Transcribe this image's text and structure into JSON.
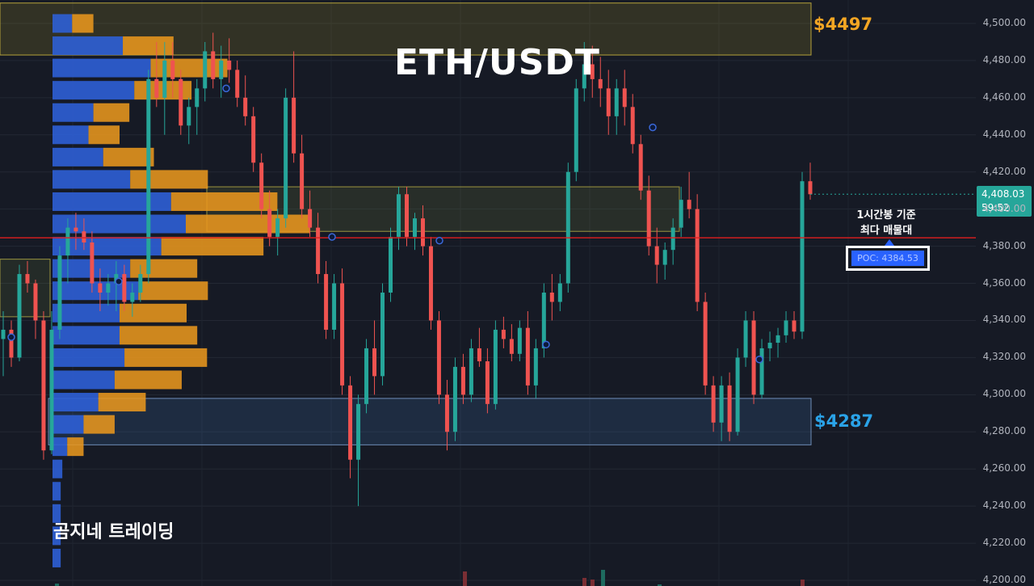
{
  "title": "ETH/USDT",
  "brand": "곰지네 트레이딩",
  "zones": {
    "resistance_label": "$4497",
    "support_label": "$4287"
  },
  "annotation": {
    "line1": "1시간봉 기준",
    "line2": "최다 매물대",
    "poc_label": "POC: 4384.53"
  },
  "price_tag": {
    "price": "4,408.03",
    "countdown": "59:52"
  },
  "colors": {
    "up": "#26a69a",
    "down": "#ef5350",
    "poc_line": "#e01e1e",
    "vp_buy": "#2962ff",
    "vp_sell": "#f5a623",
    "background": "#161a25"
  },
  "chart_data": {
    "type": "candlestick",
    "symbol": "ETH/USDT",
    "timeframe": "1h",
    "ylim": [
      4200,
      4510
    ],
    "y_ticks": [
      "4,500.00",
      "4,480.00",
      "4,460.00",
      "4,440.00",
      "4,420.00",
      "4,400.00",
      "4,380.00",
      "4,360.00",
      "4,340.00",
      "4,320.00",
      "4,300.00",
      "4,280.00",
      "4,260.00",
      "4,240.00",
      "4,220.00",
      "4,200.00"
    ],
    "y_tick_values": [
      4500,
      4480,
      4460,
      4440,
      4420,
      4400,
      4380,
      4360,
      4340,
      4320,
      4300,
      4280,
      4260,
      4240,
      4220,
      4200
    ],
    "poc": 4384.53,
    "current_price": 4408.03,
    "resistance_zone": [
      4483,
      4511
    ],
    "support_zone": [
      4273,
      4298
    ],
    "candles": [
      [
        4330,
        4345,
        4310,
        4335
      ],
      [
        4335,
        4340,
        4315,
        4320
      ],
      [
        4320,
        4370,
        4318,
        4365
      ],
      [
        4365,
        4372,
        4355,
        4360
      ],
      [
        4360,
        4362,
        4330,
        4340
      ],
      [
        4340,
        4345,
        4265,
        4270
      ],
      [
        4270,
        4345,
        4268,
        4335
      ],
      [
        4335,
        4380,
        4330,
        4375
      ],
      [
        4375,
        4395,
        4360,
        4390
      ],
      [
        4390,
        4398,
        4378,
        4388
      ],
      [
        4388,
        4395,
        4378,
        4382
      ],
      [
        4382,
        4388,
        4355,
        4360
      ],
      [
        4360,
        4368,
        4345,
        4355
      ],
      [
        4355,
        4365,
        4348,
        4360
      ],
      [
        4360,
        4372,
        4345,
        4365
      ],
      [
        4365,
        4370,
        4345,
        4350
      ],
      [
        4350,
        4360,
        4342,
        4355
      ],
      [
        4355,
        4370,
        4350,
        4365
      ],
      [
        4365,
        4475,
        4360,
        4470
      ],
      [
        4470,
        4490,
        4455,
        4460
      ],
      [
        4460,
        4490,
        4440,
        4480
      ],
      [
        4480,
        4490,
        4460,
        4470
      ],
      [
        4470,
        4475,
        4440,
        4445
      ],
      [
        4445,
        4460,
        4435,
        4455
      ],
      [
        4455,
        4470,
        4440,
        4465
      ],
      [
        4465,
        4490,
        4458,
        4485
      ],
      [
        4485,
        4495,
        4465,
        4470
      ],
      [
        4470,
        4488,
        4460,
        4480
      ],
      [
        4480,
        4492,
        4468,
        4475
      ],
      [
        4475,
        4480,
        4455,
        4460
      ],
      [
        4460,
        4472,
        4445,
        4450
      ],
      [
        4450,
        4455,
        4420,
        4425
      ],
      [
        4425,
        4430,
        4395,
        4400
      ],
      [
        4400,
        4410,
        4380,
        4385
      ],
      [
        4385,
        4400,
        4375,
        4395
      ],
      [
        4395,
        4465,
        4390,
        4460
      ],
      [
        4460,
        4485,
        4425,
        4430
      ],
      [
        4430,
        4440,
        4395,
        4400
      ],
      [
        4400,
        4410,
        4385,
        4390
      ],
      [
        4390,
        4398,
        4360,
        4365
      ],
      [
        4365,
        4372,
        4330,
        4335
      ],
      [
        4335,
        4365,
        4330,
        4360
      ],
      [
        4360,
        4368,
        4300,
        4305
      ],
      [
        4305,
        4310,
        4255,
        4265
      ],
      [
        4265,
        4300,
        4240,
        4295
      ],
      [
        4295,
        4330,
        4290,
        4325
      ],
      [
        4325,
        4340,
        4300,
        4310
      ],
      [
        4310,
        4360,
        4305,
        4355
      ],
      [
        4355,
        4390,
        4350,
        4385
      ],
      [
        4385,
        4412,
        4378,
        4408
      ],
      [
        4408,
        4412,
        4380,
        4385
      ],
      [
        4385,
        4398,
        4378,
        4395
      ],
      [
        4395,
        4402,
        4375,
        4380
      ],
      [
        4380,
        4385,
        4335,
        4340
      ],
      [
        4340,
        4345,
        4295,
        4300
      ],
      [
        4300,
        4308,
        4270,
        4280
      ],
      [
        4280,
        4320,
        4275,
        4315
      ],
      [
        4315,
        4322,
        4295,
        4300
      ],
      [
        4300,
        4330,
        4296,
        4325
      ],
      [
        4325,
        4336,
        4315,
        4318
      ],
      [
        4318,
        4325,
        4290,
        4295
      ],
      [
        4295,
        4340,
        4292,
        4335
      ],
      [
        4335,
        4342,
        4325,
        4330
      ],
      [
        4330,
        4338,
        4318,
        4322
      ],
      [
        4322,
        4340,
        4318,
        4336
      ],
      [
        4336,
        4345,
        4300,
        4305
      ],
      [
        4305,
        4330,
        4298,
        4325
      ],
      [
        4325,
        4360,
        4320,
        4355
      ],
      [
        4355,
        4365,
        4340,
        4350
      ],
      [
        4350,
        4365,
        4345,
        4360
      ],
      [
        4360,
        4425,
        4355,
        4420
      ],
      [
        4420,
        4470,
        4415,
        4465
      ],
      [
        4465,
        4490,
        4458,
        4478
      ],
      [
        4478,
        4488,
        4460,
        4470
      ],
      [
        4470,
        4482,
        4455,
        4465
      ],
      [
        4465,
        4475,
        4440,
        4450
      ],
      [
        4450,
        4470,
        4440,
        4465
      ],
      [
        4465,
        4475,
        4445,
        4455
      ],
      [
        4455,
        4462,
        4430,
        4435
      ],
      [
        4435,
        4440,
        4405,
        4410
      ],
      [
        4410,
        4418,
        4375,
        4380
      ],
      [
        4380,
        4390,
        4360,
        4370
      ],
      [
        4370,
        4382,
        4362,
        4378
      ],
      [
        4378,
        4395,
        4370,
        4390
      ],
      [
        4390,
        4412,
        4385,
        4405
      ],
      [
        4405,
        4420,
        4395,
        4400
      ],
      [
        4400,
        4408,
        4345,
        4350
      ],
      [
        4350,
        4355,
        4300,
        4305
      ],
      [
        4305,
        4310,
        4280,
        4285
      ],
      [
        4285,
        4310,
        4275,
        4305
      ],
      [
        4305,
        4312,
        4275,
        4280
      ],
      [
        4280,
        4325,
        4278,
        4320
      ],
      [
        4320,
        4345,
        4315,
        4340
      ],
      [
        4340,
        4345,
        4295,
        4300
      ],
      [
        4300,
        4330,
        4298,
        4325
      ],
      [
        4325,
        4334,
        4318,
        4328
      ],
      [
        4328,
        4336,
        4320,
        4332
      ],
      [
        4332,
        4345,
        4328,
        4340
      ],
      [
        4340,
        4345,
        4330,
        4334
      ],
      [
        4334,
        4420,
        4330,
        4415
      ],
      [
        4415,
        4425,
        4405,
        4408
      ]
    ],
    "volume_profile": [
      {
        "price": 4500,
        "buy": 24,
        "sell": 26
      },
      {
        "price": 4488,
        "buy": 86,
        "sell": 62
      },
      {
        "price": 4476,
        "buy": 120,
        "sell": 94
      },
      {
        "price": 4464,
        "buy": 100,
        "sell": 70
      },
      {
        "price": 4452,
        "buy": 50,
        "sell": 44
      },
      {
        "price": 4440,
        "buy": 44,
        "sell": 38
      },
      {
        "price": 4428,
        "buy": 62,
        "sell": 62
      },
      {
        "price": 4416,
        "buy": 95,
        "sell": 95
      },
      {
        "price": 4404,
        "buy": 145,
        "sell": 130
      },
      {
        "price": 4392,
        "buy": 163,
        "sell": 152
      },
      {
        "price": 4380,
        "buy": 133,
        "sell": 125
      },
      {
        "price": 4368,
        "buy": 95,
        "sell": 82
      },
      {
        "price": 4356,
        "buy": 105,
        "sell": 85
      },
      {
        "price": 4344,
        "buy": 82,
        "sell": 82
      },
      {
        "price": 4332,
        "buy": 82,
        "sell": 95
      },
      {
        "price": 4320,
        "buy": 88,
        "sell": 101
      },
      {
        "price": 4308,
        "buy": 76,
        "sell": 82
      },
      {
        "price": 4296,
        "buy": 56,
        "sell": 58
      },
      {
        "price": 4284,
        "buy": 38,
        "sell": 38
      },
      {
        "price": 4272,
        "buy": 18,
        "sell": 20
      },
      {
        "price": 4260,
        "buy": 12,
        "sell": 0
      },
      {
        "price": 4248,
        "buy": 10,
        "sell": 0
      },
      {
        "price": 4236,
        "buy": 10,
        "sell": 0
      },
      {
        "price": 4224,
        "buy": 10,
        "sell": 0
      },
      {
        "price": 4212,
        "buy": 10,
        "sell": 0
      }
    ]
  }
}
